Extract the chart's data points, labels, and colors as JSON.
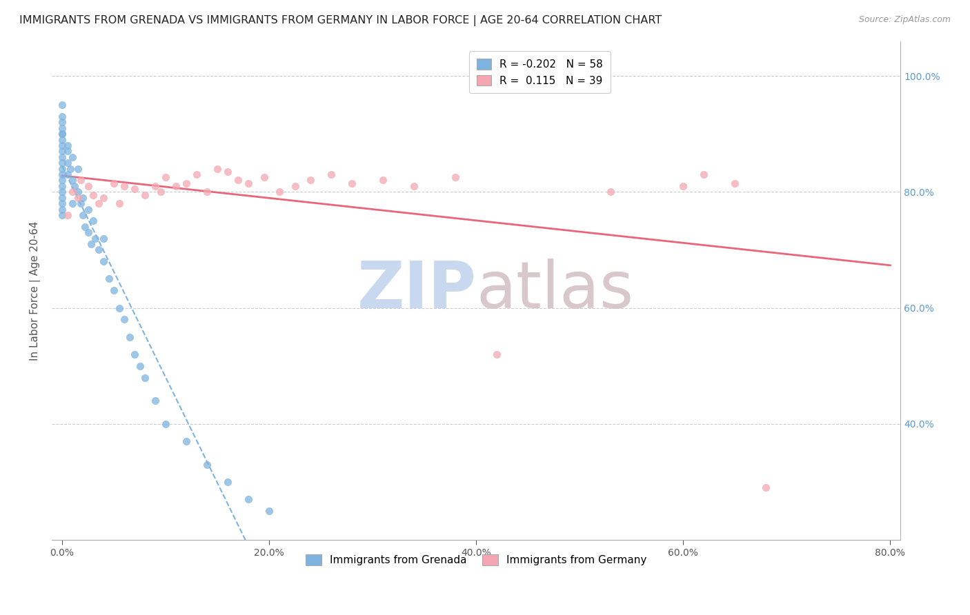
{
  "title": "IMMIGRANTS FROM GRENADA VS IMMIGRANTS FROM GERMANY IN LABOR FORCE | AGE 20-64 CORRELATION CHART",
  "source": "Source: ZipAtlas.com",
  "ylabel": "In Labor Force | Age 20-64",
  "legend_labels": [
    "Immigrants from Grenada",
    "Immigrants from Germany"
  ],
  "r_grenada": -0.202,
  "n_grenada": 58,
  "r_germany": 0.115,
  "n_germany": 39,
  "color_grenada": "#7eb3e0",
  "color_germany": "#f4a7b0",
  "trendline_grenada": "#7eb3e0",
  "trendline_germany": "#e8657a",
  "background_color": "#ffffff",
  "watermark_zip": "ZIP",
  "watermark_atlas": "atlas",
  "xmin": 0.0,
  "xmax": 0.8,
  "ymin": 0.2,
  "ymax": 1.06,
  "ytick_vals": [
    0.4,
    0.6,
    0.8,
    1.0
  ],
  "ytick_labels_right": [
    "40.0%",
    "60.0%",
    "80.0%",
    "100.0%"
  ],
  "xtick_vals": [
    0.0,
    0.2,
    0.4,
    0.6,
    0.8
  ],
  "xtick_labels": [
    "0.0%",
    "20.0%",
    "40.0%",
    "60.0%",
    "80.0%"
  ],
  "grenada_x": [
    0.0,
    0.0,
    0.0,
    0.0,
    0.0,
    0.0,
    0.0,
    0.0,
    0.0,
    0.0,
    0.0,
    0.0,
    0.0,
    0.0,
    0.0,
    0.0,
    0.0,
    0.0,
    0.0,
    0.0,
    0.005,
    0.005,
    0.005,
    0.005,
    0.008,
    0.01,
    0.01,
    0.01,
    0.012,
    0.015,
    0.015,
    0.018,
    0.02,
    0.02,
    0.022,
    0.025,
    0.025,
    0.028,
    0.03,
    0.032,
    0.035,
    0.04,
    0.04,
    0.045,
    0.05,
    0.055,
    0.06,
    0.065,
    0.07,
    0.075,
    0.08,
    0.09,
    0.1,
    0.12,
    0.14,
    0.16,
    0.18,
    0.2
  ],
  "grenada_y": [
    0.95,
    0.93,
    0.91,
    0.89,
    0.87,
    0.85,
    0.83,
    0.81,
    0.79,
    0.77,
    0.92,
    0.9,
    0.88,
    0.86,
    0.84,
    0.82,
    0.8,
    0.78,
    0.76,
    0.9,
    0.88,
    0.85,
    0.83,
    0.87,
    0.84,
    0.86,
    0.82,
    0.78,
    0.81,
    0.84,
    0.8,
    0.78,
    0.79,
    0.76,
    0.74,
    0.77,
    0.73,
    0.71,
    0.75,
    0.72,
    0.7,
    0.72,
    0.68,
    0.65,
    0.63,
    0.6,
    0.58,
    0.55,
    0.52,
    0.5,
    0.48,
    0.44,
    0.4,
    0.37,
    0.33,
    0.3,
    0.27,
    0.25
  ],
  "germany_x": [
    0.005,
    0.01,
    0.015,
    0.018,
    0.025,
    0.03,
    0.035,
    0.04,
    0.05,
    0.055,
    0.06,
    0.07,
    0.08,
    0.09,
    0.095,
    0.1,
    0.11,
    0.12,
    0.13,
    0.14,
    0.15,
    0.16,
    0.17,
    0.18,
    0.195,
    0.21,
    0.225,
    0.24,
    0.26,
    0.28,
    0.31,
    0.34,
    0.38,
    0.42,
    0.53,
    0.6,
    0.62,
    0.65,
    0.68
  ],
  "germany_y": [
    0.76,
    0.8,
    0.79,
    0.82,
    0.81,
    0.795,
    0.78,
    0.79,
    0.815,
    0.78,
    0.81,
    0.805,
    0.795,
    0.81,
    0.8,
    0.825,
    0.81,
    0.815,
    0.83,
    0.8,
    0.84,
    0.835,
    0.82,
    0.815,
    0.825,
    0.8,
    0.81,
    0.82,
    0.83,
    0.815,
    0.82,
    0.81,
    0.825,
    0.52,
    0.8,
    0.81,
    0.83,
    0.815,
    0.29
  ],
  "title_fontsize": 11.5,
  "source_fontsize": 9,
  "axis_label_fontsize": 11,
  "tick_fontsize": 10,
  "legend_fontsize": 11
}
